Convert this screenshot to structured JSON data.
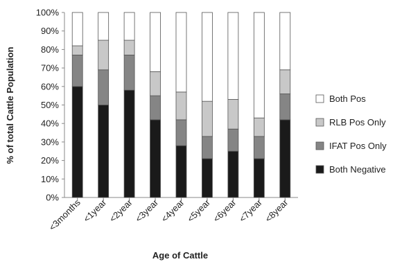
{
  "chart_data": {
    "type": "bar",
    "stacked": true,
    "title": "",
    "xlabel": "Age of Cattle",
    "ylabel": "% of total Cattle Population",
    "ylim": [
      0,
      100
    ],
    "yticks": [
      "0%",
      "10%",
      "20%",
      "30%",
      "40%",
      "50%",
      "60%",
      "70%",
      "80%",
      "90%",
      "100%"
    ],
    "categories": [
      "<3months",
      "<1year",
      "<2year",
      "<3year",
      "<4year",
      "<5year",
      "<6year",
      "<7year",
      "<8year"
    ],
    "legend_position": "right",
    "grid": false,
    "series": [
      {
        "name": "Both Negative",
        "color": "#1a1a1a",
        "values": [
          60,
          50,
          58,
          42,
          28,
          21,
          25,
          21,
          42
        ]
      },
      {
        "name": "IFAT Pos Only",
        "color": "#858585",
        "values": [
          17,
          19,
          19,
          13,
          14,
          12,
          12,
          12,
          14
        ]
      },
      {
        "name": "RLB Pos Only",
        "color": "#c8c8c8",
        "values": [
          5,
          16,
          8,
          13,
          15,
          19,
          16,
          10,
          13
        ]
      },
      {
        "name": "Both Pos",
        "color": "#ffffff",
        "values": [
          18,
          15,
          15,
          32,
          43,
          48,
          47,
          57,
          31
        ]
      }
    ],
    "legend_order": [
      "Both Pos",
      "RLB Pos Only",
      "IFAT Pos Only",
      "Both Negative"
    ]
  }
}
